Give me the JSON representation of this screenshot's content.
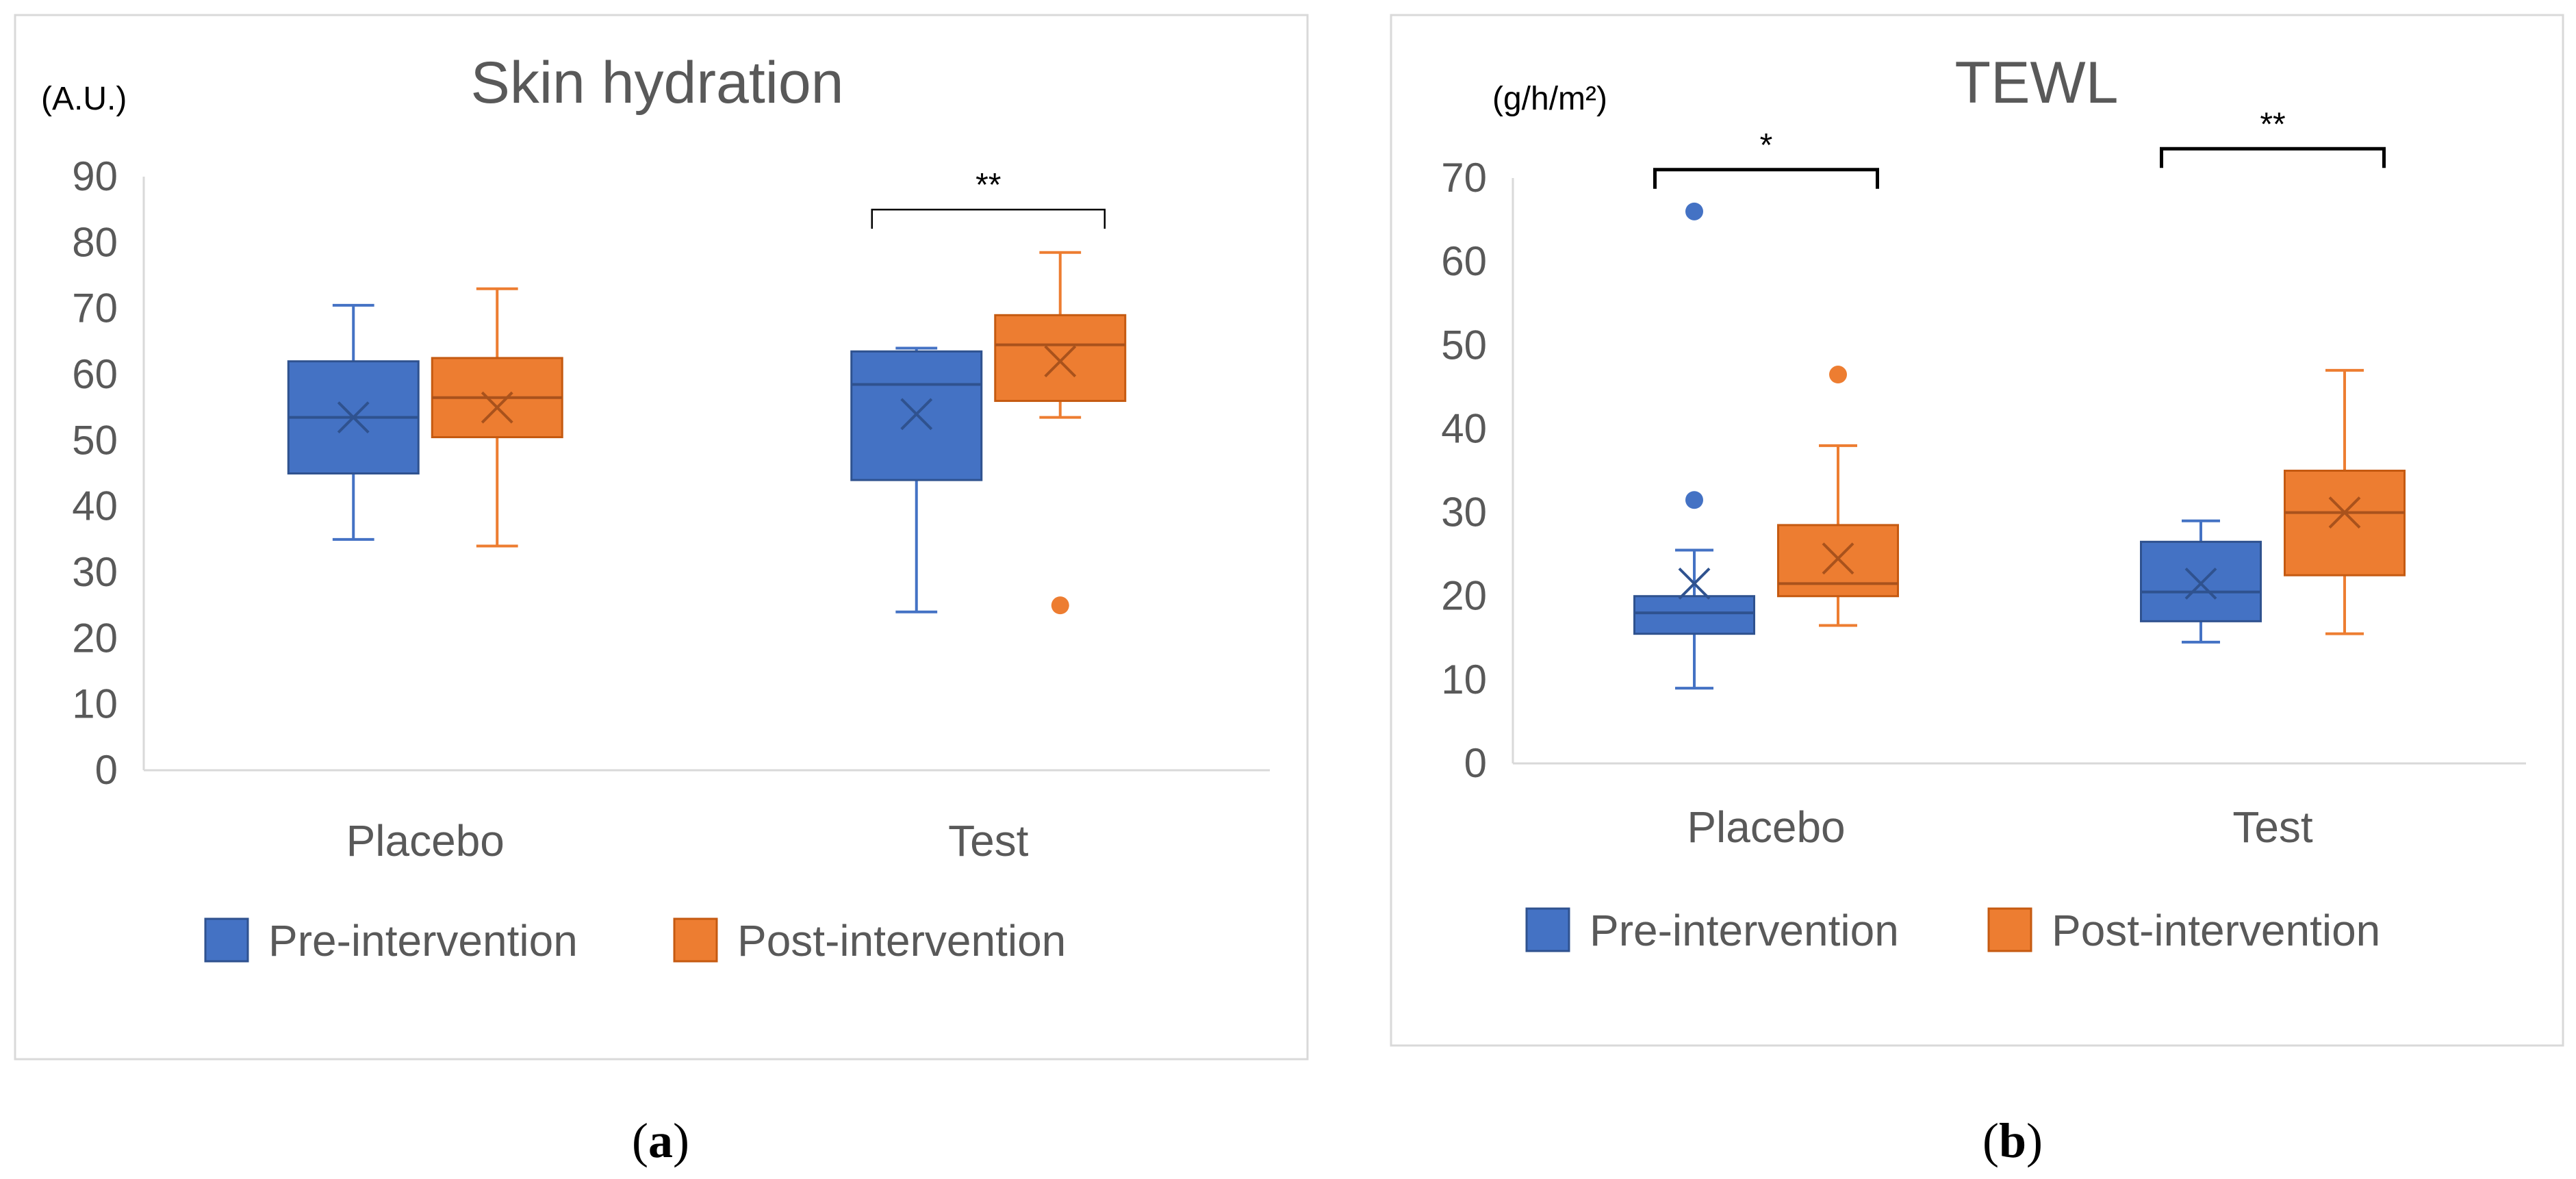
{
  "chart_data": [
    {
      "type": "box",
      "title": "Skin hydration",
      "unit_label": "(A.U.)",
      "panel_label": "a",
      "categories": [
        "Placebo",
        "Test"
      ],
      "ylim": [
        0,
        90
      ],
      "yticks": [
        0,
        10,
        20,
        30,
        40,
        50,
        60,
        70,
        80,
        90
      ],
      "legend": [
        "Pre-intervention",
        "Post-intervention"
      ],
      "series": [
        {
          "name": "Pre-intervention",
          "color": "#4472C4",
          "boxes": [
            {
              "category": "Placebo",
              "min": 35,
              "q1": 45,
              "median": 53.5,
              "q3": 62,
              "max": 70.5,
              "mean": 53.5,
              "outliers": []
            },
            {
              "category": "Test",
              "min": 24,
              "q1": 44,
              "median": 58.5,
              "q3": 63.5,
              "max": 64,
              "mean": 54,
              "outliers": []
            }
          ]
        },
        {
          "name": "Post-intervention",
          "color": "#ED7D31",
          "boxes": [
            {
              "category": "Placebo",
              "min": 34,
              "q1": 50.5,
              "median": 56.5,
              "q3": 62.5,
              "max": 73,
              "mean": 55,
              "outliers": []
            },
            {
              "category": "Test",
              "min": 53.5,
              "q1": 56,
              "median": 64.5,
              "q3": 69,
              "max": 78.5,
              "mean": 62,
              "outliers": [
                25
              ]
            }
          ]
        }
      ],
      "significance": [
        {
          "category": "Test",
          "label": "**",
          "y": 85
        }
      ]
    },
    {
      "type": "box",
      "title": "TEWL",
      "unit_label": "(g/h/m²)",
      "panel_label": "b",
      "categories": [
        "Placebo",
        "Test"
      ],
      "ylim": [
        0,
        70
      ],
      "yticks": [
        0,
        10,
        20,
        30,
        40,
        50,
        60,
        70
      ],
      "legend": [
        "Pre-intervention",
        "Post-intervention"
      ],
      "series": [
        {
          "name": "Pre-intervention",
          "color": "#4472C4",
          "boxes": [
            {
              "category": "Placebo",
              "min": 9,
              "q1": 15.5,
              "median": 18,
              "q3": 20,
              "max": 25.5,
              "mean": 21.5,
              "outliers": [
                31.5,
                66
              ]
            },
            {
              "category": "Test",
              "min": 14.5,
              "q1": 17,
              "median": 20.5,
              "q3": 26.5,
              "max": 29,
              "mean": 21.5,
              "outliers": []
            }
          ]
        },
        {
          "name": "Post-intervention",
          "color": "#ED7D31",
          "boxes": [
            {
              "category": "Placebo",
              "min": 16.5,
              "q1": 20,
              "median": 21.5,
              "q3": 28.5,
              "max": 38,
              "mean": 24.5,
              "outliers": [
                46.5
              ]
            },
            {
              "category": "Test",
              "min": 15.5,
              "q1": 22.5,
              "median": 30,
              "q3": 35,
              "max": 47,
              "mean": 30,
              "outliers": []
            }
          ]
        }
      ],
      "significance": [
        {
          "category": "Placebo",
          "label": "*",
          "y": 71
        },
        {
          "category": "Test",
          "label": "**",
          "y": 73.5
        }
      ]
    }
  ]
}
